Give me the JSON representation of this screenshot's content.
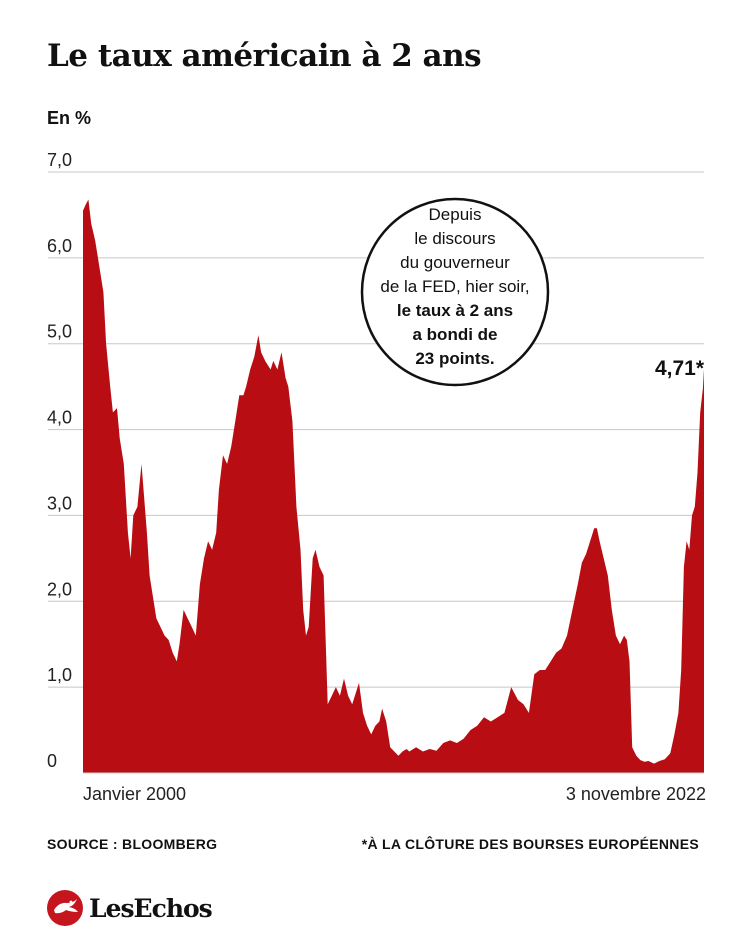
{
  "header": {
    "title": "Le taux américain à 2 ans",
    "unit": "En %"
  },
  "chart_data": {
    "type": "area",
    "title": "Le taux américain à 2 ans",
    "ylabel": "En %",
    "ylim": [
      0,
      7
    ],
    "y_ticks": [
      "0",
      "1,0",
      "2,0",
      "3,0",
      "4,0",
      "5,0",
      "6,0",
      "7,0"
    ],
    "x_start_label": "Janvier 2000",
    "x_end_label": "3 novembre 2022",
    "xlim": [
      2000.0,
      2022.84
    ],
    "color": "#b80d12",
    "grid": true,
    "series": [
      {
        "name": "Taux américain à 2 ans",
        "x": [
          2000.0,
          2000.1,
          2000.2,
          2000.3,
          2000.45,
          2000.6,
          2000.75,
          2000.85,
          2001.0,
          2001.1,
          2001.25,
          2001.35,
          2001.5,
          2001.65,
          2001.75,
          2001.85,
          2002.0,
          2002.15,
          2002.25,
          2002.35,
          2002.45,
          2002.55,
          2002.7,
          2002.85,
          2003.0,
          2003.15,
          2003.3,
          2003.45,
          2003.55,
          2003.7,
          2003.85,
          2004.0,
          2004.15,
          2004.3,
          2004.45,
          2004.6,
          2004.75,
          2004.9,
          2005.0,
          2005.15,
          2005.3,
          2005.45,
          2005.6,
          2005.75,
          2005.9,
          2006.0,
          2006.15,
          2006.3,
          2006.45,
          2006.55,
          2006.7,
          2006.8,
          2006.9,
          2007.0,
          2007.15,
          2007.3,
          2007.45,
          2007.55,
          2007.7,
          2007.85,
          2008.0,
          2008.1,
          2008.2,
          2008.3,
          2008.45,
          2008.55,
          2008.7,
          2008.85,
          2009.0,
          2009.15,
          2009.3,
          2009.45,
          2009.6,
          2009.75,
          2009.9,
          2010.0,
          2010.15,
          2010.3,
          2010.45,
          2010.6,
          2010.75,
          2010.9,
          2011.0,
          2011.15,
          2011.3,
          2011.45,
          2011.6,
          2011.75,
          2011.9,
          2012.0,
          2012.25,
          2012.5,
          2012.75,
          2013.0,
          2013.25,
          2013.5,
          2013.75,
          2014.0,
          2014.25,
          2014.5,
          2014.75,
          2015.0,
          2015.25,
          2015.5,
          2015.75,
          2016.0,
          2016.2,
          2016.4,
          2016.6,
          2016.8,
          2017.0,
          2017.2,
          2017.4,
          2017.6,
          2017.8,
          2018.0,
          2018.2,
          2018.35,
          2018.5,
          2018.65,
          2018.8,
          2018.9,
          2019.0,
          2019.15,
          2019.3,
          2019.45,
          2019.6,
          2019.75,
          2019.9,
          2020.0,
          2020.1,
          2020.2,
          2020.35,
          2020.5,
          2020.65,
          2020.8,
          2021.0,
          2021.2,
          2021.4,
          2021.6,
          2021.75,
          2021.9,
          2022.0,
          2022.1,
          2022.2,
          2022.3,
          2022.4,
          2022.5,
          2022.6,
          2022.7,
          2022.8,
          2022.84
        ],
        "values": [
          6.55,
          6.62,
          6.68,
          6.4,
          6.2,
          5.9,
          5.6,
          5.0,
          4.5,
          4.2,
          4.25,
          3.9,
          3.6,
          2.8,
          2.5,
          3.0,
          3.1,
          3.6,
          3.2,
          2.8,
          2.3,
          2.1,
          1.8,
          1.7,
          1.6,
          1.55,
          1.4,
          1.3,
          1.5,
          1.9,
          1.8,
          1.7,
          1.6,
          2.2,
          2.5,
          2.7,
          2.6,
          2.8,
          3.3,
          3.7,
          3.6,
          3.8,
          4.1,
          4.4,
          4.4,
          4.5,
          4.7,
          4.85,
          5.1,
          4.9,
          4.8,
          4.75,
          4.7,
          4.8,
          4.7,
          4.9,
          4.6,
          4.5,
          4.1,
          3.1,
          2.6,
          1.9,
          1.6,
          1.7,
          2.5,
          2.6,
          2.4,
          2.3,
          0.8,
          0.9,
          1.0,
          0.9,
          1.1,
          0.9,
          0.8,
          0.9,
          1.05,
          0.7,
          0.55,
          0.45,
          0.55,
          0.6,
          0.75,
          0.6,
          0.3,
          0.25,
          0.2,
          0.25,
          0.28,
          0.25,
          0.3,
          0.25,
          0.28,
          0.26,
          0.35,
          0.38,
          0.35,
          0.4,
          0.5,
          0.55,
          0.65,
          0.6,
          0.65,
          0.7,
          1.0,
          0.85,
          0.8,
          0.7,
          1.15,
          1.2,
          1.2,
          1.3,
          1.4,
          1.45,
          1.6,
          1.9,
          2.2,
          2.45,
          2.55,
          2.7,
          2.85,
          2.85,
          2.7,
          2.5,
          2.3,
          1.9,
          1.6,
          1.5,
          1.6,
          1.55,
          1.3,
          0.3,
          0.2,
          0.15,
          0.13,
          0.14,
          0.11,
          0.14,
          0.16,
          0.23,
          0.45,
          0.7,
          1.2,
          2.4,
          2.7,
          2.6,
          3.0,
          3.1,
          3.5,
          4.2,
          4.48,
          4.71
        ]
      }
    ],
    "last_value_label": "4,71*",
    "annotation": {
      "lines_regular": [
        "Depuis",
        "le discours",
        "du gouverneur",
        "de la FED, hier soir,"
      ],
      "lines_bold": [
        "le taux à 2 ans",
        "a bondi de",
        "23 points."
      ]
    }
  },
  "footer": {
    "source": "SOURCE : BLOOMBERG",
    "note": "*À LA CLÔTURE DES BOURSES EUROPÉENNES"
  },
  "brand": {
    "name": "LesEchos",
    "accent": "#c4161c"
  }
}
